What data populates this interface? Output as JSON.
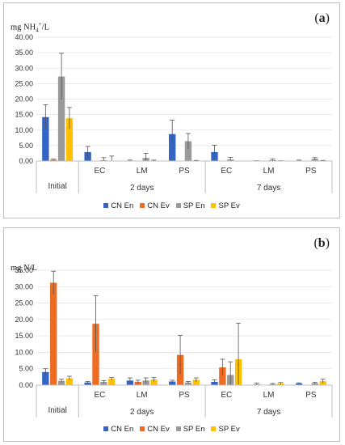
{
  "colors": {
    "CN En": "#3465c4",
    "CN Ev": "#ed6c22",
    "SP En": "#9a9a9a",
    "SP Ev": "#ffc000"
  },
  "chart_data": [
    {
      "panel_label": "a",
      "type": "bar",
      "ylabel_main": "mg NH",
      "ylabel_sub": "4",
      "ylabel_sup": "+",
      "ylabel_rest": "/L",
      "ylim": [
        0,
        40
      ],
      "yticks": [
        "0.00",
        "5.00",
        "10.00",
        "15.00",
        "20.00",
        "25.00",
        "30.00",
        "35.00",
        "40.00"
      ],
      "categories": [
        "Initial",
        "EC",
        "LM",
        "PS",
        "EC",
        "LM",
        "PS"
      ],
      "groups": [
        {
          "label": "Initial",
          "span": [
            0,
            0
          ]
        },
        {
          "label": "2 days",
          "span": [
            1,
            3
          ]
        },
        {
          "label": "7 days",
          "span": [
            4,
            6
          ]
        }
      ],
      "legend": [
        "CN En",
        "CN Ev",
        "SP En",
        "SP Ev"
      ],
      "series": [
        {
          "name": "CN En",
          "values": [
            14.2,
            2.9,
            0.1,
            8.7,
            2.9,
            0.0,
            0.1
          ],
          "errors": [
            4.0,
            1.8,
            0.2,
            4.5,
            2.2,
            0.1,
            0.2
          ]
        },
        {
          "name": "CN Ev",
          "values": [
            0.4,
            0.0,
            0.0,
            0.0,
            0.0,
            0.0,
            0.0
          ],
          "errors": [
            0.2,
            0.0,
            0.0,
            0.0,
            0.0,
            0.0,
            0.0
          ]
        },
        {
          "name": "SP En",
          "values": [
            27.3,
            0.3,
            1.0,
            6.4,
            0.5,
            0.3,
            0.7
          ],
          "errors": [
            7.5,
            0.8,
            1.5,
            2.5,
            0.7,
            0.3,
            0.4
          ]
        },
        {
          "name": "SP Ev",
          "values": [
            13.8,
            0.0,
            0.1,
            0.1,
            0.0,
            0.0,
            0.1
          ],
          "errors": [
            3.5,
            1.6,
            0.2,
            0.1,
            0.0,
            0.1,
            0.1
          ]
        }
      ]
    },
    {
      "panel_label": "b",
      "type": "bar",
      "ylabel_main": "mg N/L",
      "ylabel_sub": "",
      "ylabel_sup": "",
      "ylabel_rest": "",
      "ylim": [
        0,
        35
      ],
      "yticks": [
        "0.00",
        "5.00",
        "10.00",
        "15.00",
        "20.00",
        "25.00",
        "30.00",
        "35.00"
      ],
      "categories": [
        "Initial",
        "EC",
        "LM",
        "PS",
        "EC",
        "LM",
        "PS"
      ],
      "groups": [
        {
          "label": "Initial",
          "span": [
            0,
            0
          ]
        },
        {
          "label": "2 days",
          "span": [
            1,
            3
          ]
        },
        {
          "label": "7 days",
          "span": [
            4,
            6
          ]
        }
      ],
      "legend": [
        "CN En",
        "CN Ev",
        "SP En",
        "SP Ev"
      ],
      "series": [
        {
          "name": "CN En",
          "values": [
            4.0,
            0.8,
            1.4,
            1.1,
            1.0,
            0.2,
            0.5
          ],
          "errors": [
            1.0,
            0.3,
            0.8,
            0.4,
            0.6,
            0.4,
            0.2
          ]
        },
        {
          "name": "CN Ev",
          "values": [
            31.2,
            18.7,
            1.0,
            9.2,
            5.4,
            0.0,
            0.0
          ],
          "errors": [
            3.5,
            8.5,
            0.5,
            6.0,
            2.5,
            0.0,
            0.0
          ]
        },
        {
          "name": "SP En",
          "values": [
            1.3,
            1.0,
            1.4,
            0.8,
            3.1,
            0.3,
            0.6
          ],
          "errors": [
            0.5,
            0.4,
            0.8,
            0.3,
            4.0,
            0.2,
            0.3
          ]
        },
        {
          "name": "SP Ev",
          "values": [
            2.1,
            1.9,
            1.7,
            1.6,
            7.9,
            0.5,
            1.2
          ],
          "errors": [
            0.6,
            0.4,
            0.6,
            0.6,
            11.0,
            0.3,
            0.6
          ]
        }
      ]
    }
  ]
}
